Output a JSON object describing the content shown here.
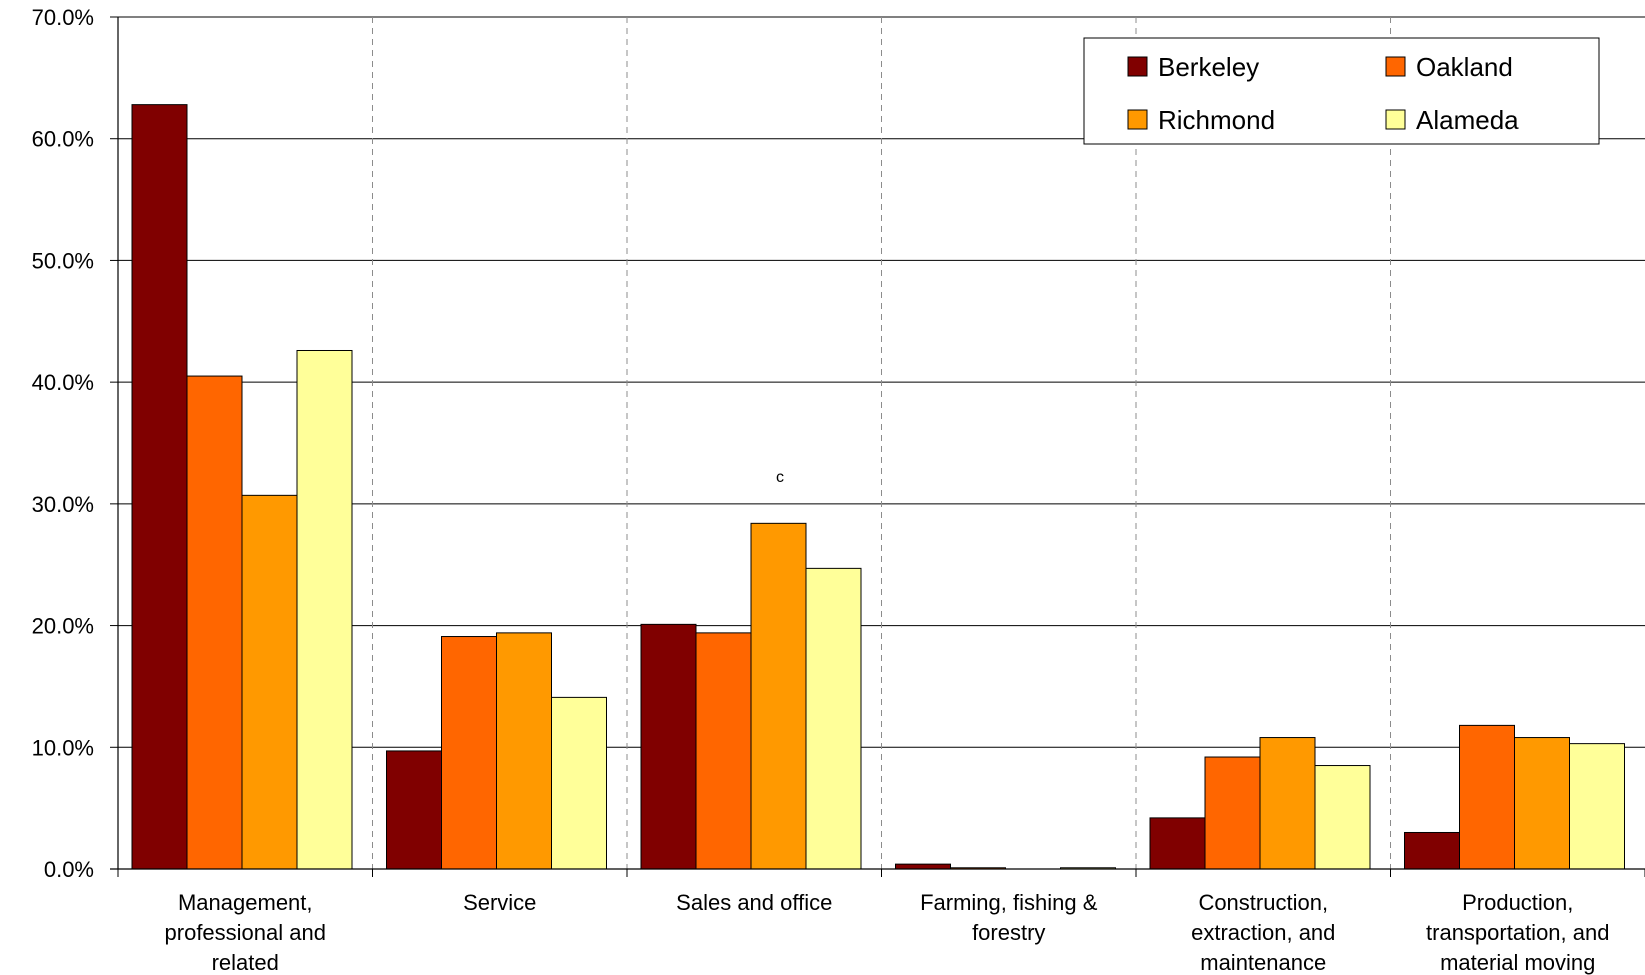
{
  "chart_data": {
    "type": "bar",
    "categories": [
      [
        "Management,",
        "professional and",
        "related"
      ],
      [
        "Service"
      ],
      [
        "Sales and office"
      ],
      [
        "Farming, fishing &",
        "forestry"
      ],
      [
        "Construction,",
        "extraction, and",
        "maintenance"
      ],
      [
        "Production,",
        "transportation, and",
        "material moving"
      ]
    ],
    "series": [
      {
        "name": "Berkeley",
        "color": "#800000",
        "values": [
          62.8,
          9.7,
          20.1,
          0.4,
          4.2,
          3.0
        ]
      },
      {
        "name": "Oakland",
        "color": "#FF6600",
        "values": [
          40.5,
          19.1,
          19.4,
          0.1,
          9.2,
          11.8
        ]
      },
      {
        "name": "Richmond",
        "color": "#FF9900",
        "values": [
          30.7,
          19.4,
          28.4,
          0.0,
          10.8,
          10.8
        ]
      },
      {
        "name": "Alameda",
        "color": "#FFFF99",
        "values": [
          42.6,
          14.1,
          24.7,
          0.1,
          8.5,
          10.3
        ]
      }
    ],
    "yticks": [
      "0.0%",
      "10.0%",
      "20.0%",
      "30.0%",
      "40.0%",
      "50.0%",
      "60.0%",
      "70.0%"
    ],
    "ylim": [
      0,
      70
    ],
    "grid": true,
    "legend_position": "top-right",
    "annotation": "c",
    "title": "",
    "xlabel": "",
    "ylabel": ""
  }
}
